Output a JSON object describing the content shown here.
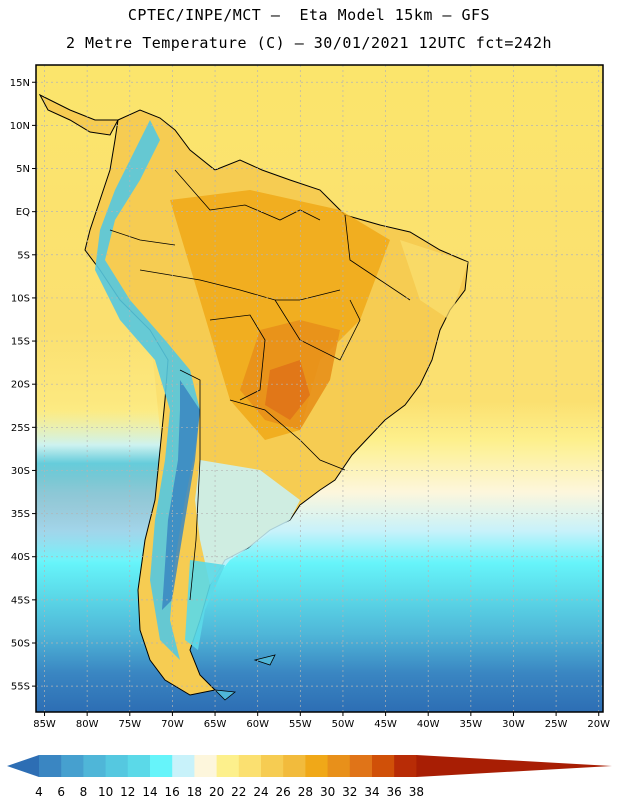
{
  "header": {
    "line1": "CPTEC/INPE/MCT –  Eta Model 15km – GFS",
    "line2": "2 Metre Temperature (C) – 30/01/2021 12UTC fct=242h"
  },
  "map": {
    "lon_range": [
      -86,
      -19.5
    ],
    "lat_range": [
      -58,
      17
    ],
    "lat_ticks": [
      {
        "label": "15N",
        "lat": 15
      },
      {
        "label": "10N",
        "lat": 10
      },
      {
        "label": "5N",
        "lat": 5
      },
      {
        "label": "EQ",
        "lat": 0
      },
      {
        "label": "5S",
        "lat": -5
      },
      {
        "label": "10S",
        "lat": -10
      },
      {
        "label": "15S",
        "lat": -15
      },
      {
        "label": "20S",
        "lat": -20
      },
      {
        "label": "25S",
        "lat": -25
      },
      {
        "label": "30S",
        "lat": -30
      },
      {
        "label": "35S",
        "lat": -35
      },
      {
        "label": "40S",
        "lat": -40
      },
      {
        "label": "45S",
        "lat": -45
      },
      {
        "label": "50S",
        "lat": -50
      },
      {
        "label": "55S",
        "lat": -55
      }
    ],
    "lon_ticks": [
      {
        "label": "85W",
        "lon": -85
      },
      {
        "label": "80W",
        "lon": -80
      },
      {
        "label": "75W",
        "lon": -75
      },
      {
        "label": "70W",
        "lon": -70
      },
      {
        "label": "65W",
        "lon": -65
      },
      {
        "label": "60W",
        "lon": -60
      },
      {
        "label": "55W",
        "lon": -55
      },
      {
        "label": "50W",
        "lon": -50
      },
      {
        "label": "45W",
        "lon": -45
      },
      {
        "label": "40W",
        "lon": -40
      },
      {
        "label": "35W",
        "lon": -35
      },
      {
        "label": "30W",
        "lon": -30
      },
      {
        "label": "25W",
        "lon": -25
      },
      {
        "label": "20W",
        "lon": -20
      }
    ]
  },
  "colorbar": {
    "labels": [
      "4",
      "6",
      "8",
      "10",
      "12",
      "14",
      "16",
      "18",
      "20",
      "22",
      "24",
      "26",
      "28",
      "30",
      "32",
      "34",
      "36",
      "38"
    ],
    "colors": [
      "#2d6eb4",
      "#3a86c2",
      "#46a0cf",
      "#4fb6d8",
      "#55c8e0",
      "#5bd9e8",
      "#66f4fa",
      "#c8f2fa",
      "#fdf6dc",
      "#fdf08c",
      "#fbe070",
      "#f6cc52",
      "#f2bb3c",
      "#f0a818",
      "#e8901a",
      "#e07418",
      "#d05008",
      "#b82c06",
      "#a81e04"
    ]
  }
}
